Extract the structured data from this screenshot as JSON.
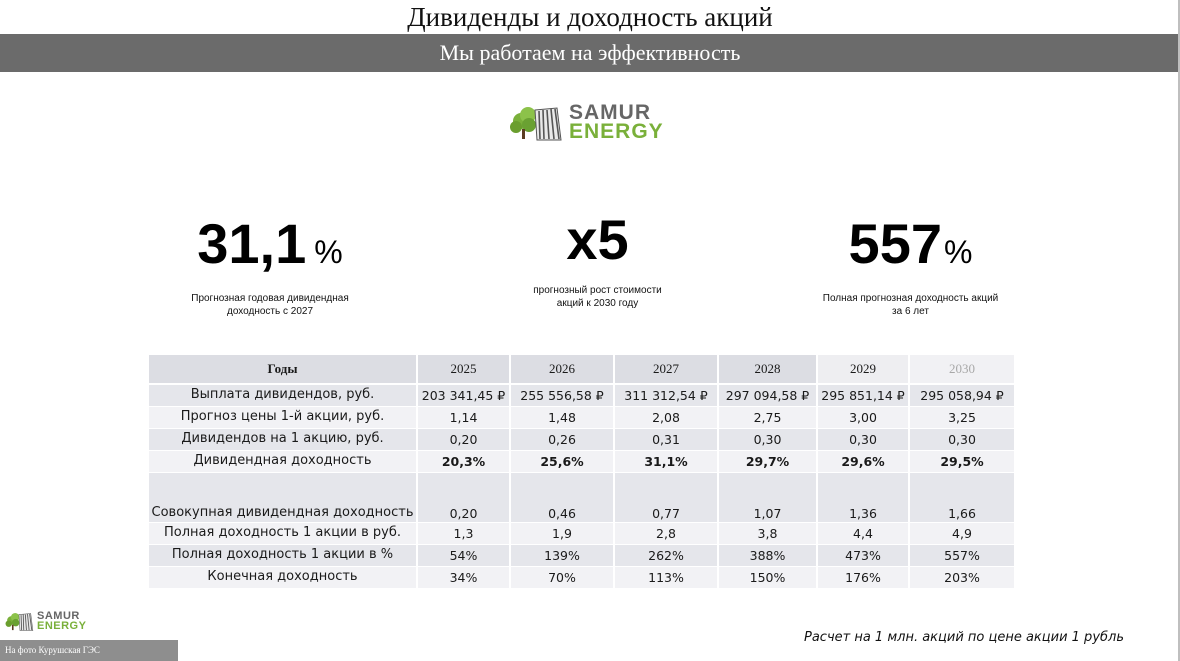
{
  "header": {
    "title": "Дивиденды и доходность акций",
    "subtitle": "Мы работаем на эффективность"
  },
  "logo": {
    "line1": "SAMUR",
    "line2": "ENERGY",
    "icon": "tree-waterfall-logo-icon"
  },
  "stats": [
    {
      "value": "31,1",
      "unit": "%",
      "caption_line1": "Прогнозная годовая дивидендная",
      "caption_line2": "доходность с 2027"
    },
    {
      "value": "x5",
      "unit": "",
      "caption_line1": "прогнозный рост стоимости",
      "caption_line2": "акций к 2030 году"
    },
    {
      "value": "557",
      "unit": "%",
      "caption_line1": "Полная прогнозная доходность акций",
      "caption_line2": "за 6 лет"
    }
  ],
  "table": {
    "header": [
      "Годы",
      "2025",
      "2026",
      "2027",
      "2028",
      "2029",
      "2030"
    ],
    "rows": [
      {
        "label": "Выплата дивидендов, руб.",
        "values": [
          "203 341,45 ₽",
          "255 556,58 ₽",
          "311 312,54 ₽",
          "297 094,58 ₽",
          "295 851,14 ₽",
          "295 058,94 ₽"
        ]
      },
      {
        "label": "Прогноз цены 1-й акции, руб.",
        "values": [
          "1,14",
          "1,48",
          "2,08",
          "2,75",
          "3,00",
          "3,25"
        ]
      },
      {
        "label": "Дивидендов на 1 акцию, руб.",
        "values": [
          "0,20",
          "0,26",
          "0,31",
          "0,30",
          "0,30",
          "0,30"
        ]
      },
      {
        "label": "Дивидендная доходность",
        "values": [
          "20,3%",
          "25,6%",
          "31,1%",
          "29,7%",
          "29,6%",
          "29,5%"
        ]
      },
      {
        "label": "Совокупная дивидендная доходность",
        "values": [
          "0,20",
          "0,46",
          "0,77",
          "1,07",
          "1,36",
          "1,66"
        ]
      },
      {
        "label": "Полная доходность 1 акции в руб.",
        "values": [
          "1,3",
          "1,9",
          "2,8",
          "3,8",
          "4,4",
          "4,9"
        ]
      },
      {
        "label": "Полная доходность 1 акции в %",
        "values": [
          "54%",
          "139%",
          "262%",
          "388%",
          "473%",
          "557%"
        ]
      },
      {
        "label": "Конечная доходность",
        "values": [
          "34%",
          "70%",
          "113%",
          "150%",
          "176%",
          "203%"
        ]
      }
    ]
  },
  "footnote": "Расчет на 1 млн. акций по цене акции 1 рубль",
  "photo_caption": "На фото Курушская ГЭС",
  "colors": {
    "brand_green": "#7ab03a",
    "brand_gray": "#666666",
    "subtitle_bar": "#6b6b6b",
    "table_row": "#e5e6eb"
  }
}
